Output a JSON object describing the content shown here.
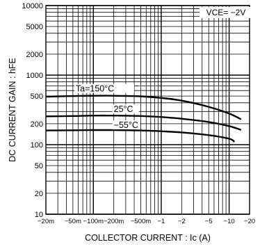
{
  "chart_data": {
    "type": "line",
    "xlabel": "COLLECTOR CURRENT : Ic (A)",
    "ylabel": "DC CURRENT GAIN : hFE",
    "condition": "VCE= −2V",
    "xscale": "log",
    "yscale": "log",
    "xlim": [
      -0.02,
      -20
    ],
    "ylim": [
      10,
      10000
    ],
    "grid": true,
    "x_ticks": [
      {
        "value": -0.02,
        "label": "−20m"
      },
      {
        "value": -0.05,
        "label": "−50m"
      },
      {
        "value": -0.1,
        "label": "−100m"
      },
      {
        "value": -0.2,
        "label": "−200m"
      },
      {
        "value": -0.5,
        "label": "−500m"
      },
      {
        "value": -1,
        "label": "−1"
      },
      {
        "value": -2,
        "label": "−2"
      },
      {
        "value": -5,
        "label": "−5"
      },
      {
        "value": -10,
        "label": "−10"
      },
      {
        "value": -20,
        "label": "−20"
      }
    ],
    "y_ticks": [
      {
        "value": 10,
        "label": "10"
      },
      {
        "value": 20,
        "label": "20"
      },
      {
        "value": 50,
        "label": "50"
      },
      {
        "value": 100,
        "label": "100"
      },
      {
        "value": 200,
        "label": "200"
      },
      {
        "value": 500,
        "label": "500"
      },
      {
        "value": 1000,
        "label": "1000"
      },
      {
        "value": 2000,
        "label": "2000"
      },
      {
        "value": 5000,
        "label": "5000"
      },
      {
        "value": 10000,
        "label": "10000"
      }
    ],
    "series": [
      {
        "name": "Ta=150°C",
        "points": [
          [
            -0.02,
            490
          ],
          [
            -0.05,
            500
          ],
          [
            -0.1,
            505
          ],
          [
            -0.2,
            505
          ],
          [
            -0.5,
            495
          ],
          [
            -1,
            470
          ],
          [
            -2,
            430
          ],
          [
            -5,
            350
          ],
          [
            -10,
            280
          ],
          [
            -15,
            232
          ]
        ]
      },
      {
        "name": "25°C",
        "points": [
          [
            -0.02,
            255
          ],
          [
            -0.05,
            258
          ],
          [
            -0.1,
            262
          ],
          [
            -0.2,
            262
          ],
          [
            -0.5,
            258
          ],
          [
            -1,
            250
          ],
          [
            -2,
            236
          ],
          [
            -5,
            212
          ],
          [
            -10,
            185
          ],
          [
            -15,
            163
          ]
        ]
      },
      {
        "name": "−55°C",
        "points": [
          [
            -0.02,
            160
          ],
          [
            -0.05,
            161
          ],
          [
            -0.1,
            162
          ],
          [
            -0.2,
            162
          ],
          [
            -0.5,
            160
          ],
          [
            -1,
            156
          ],
          [
            -2,
            150
          ],
          [
            -5,
            137
          ],
          [
            -10,
            122
          ],
          [
            -12,
            110
          ]
        ]
      }
    ]
  }
}
